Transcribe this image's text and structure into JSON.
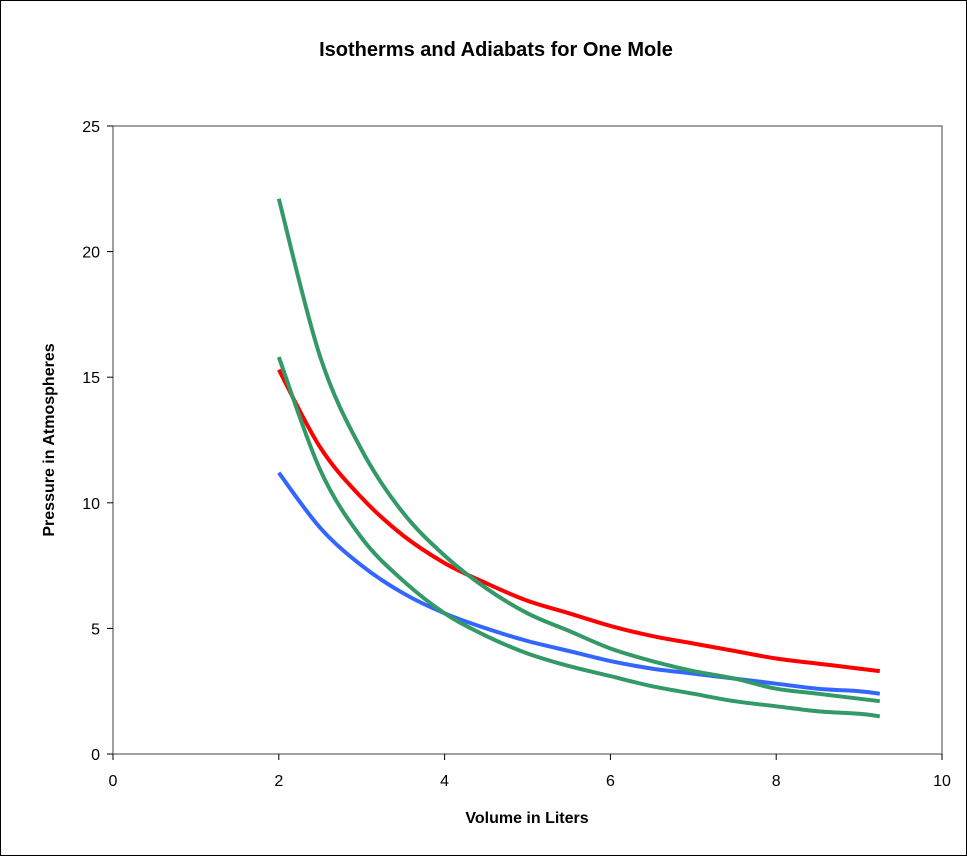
{
  "chart_data": {
    "type": "line",
    "title": "Isotherms and Adiabats for One Mole",
    "xlabel": "Volume in Liters",
    "ylabel": "Pressure in Atmospheres",
    "xlim": [
      0,
      10
    ],
    "ylim": [
      0,
      25
    ],
    "xticks": [
      "0",
      "2",
      "4",
      "6",
      "8",
      "10"
    ],
    "yticks": [
      "0",
      "5",
      "10",
      "15",
      "20",
      "25"
    ],
    "grid": false,
    "legend": "none",
    "series": [
      {
        "color": "#ff0000",
        "x": [
          2,
          2.5,
          3,
          3.5,
          4,
          4.5,
          5,
          5.5,
          6,
          6.5,
          7,
          7.5,
          8,
          8.5,
          9,
          9.25
        ],
        "y": [
          15.3,
          12.2,
          10.2,
          8.7,
          7.6,
          6.8,
          6.1,
          5.6,
          5.1,
          4.7,
          4.4,
          4.1,
          3.8,
          3.6,
          3.4,
          3.3
        ]
      },
      {
        "color": "#3366ff",
        "x": [
          2,
          2.5,
          3,
          3.5,
          4,
          4.5,
          5,
          5.5,
          6,
          6.5,
          7,
          7.5,
          8,
          8.5,
          9,
          9.25
        ],
        "y": [
          11.2,
          9.0,
          7.5,
          6.4,
          5.6,
          5.0,
          4.5,
          4.1,
          3.7,
          3.4,
          3.2,
          3.0,
          2.8,
          2.6,
          2.5,
          2.4
        ]
      },
      {
        "color": "#339966",
        "x": [
          2,
          2.5,
          3,
          3.5,
          4,
          4.5,
          5,
          5.5,
          6,
          6.5,
          7,
          7.5,
          8,
          8.5,
          9,
          9.25
        ],
        "y": [
          22.1,
          15.8,
          12.1,
          9.6,
          7.9,
          6.6,
          5.6,
          4.9,
          4.2,
          3.7,
          3.3,
          3.0,
          2.6,
          2.4,
          2.2,
          2.1
        ]
      },
      {
        "color": "#339966",
        "x": [
          2,
          2.5,
          3,
          3.5,
          4,
          4.5,
          5,
          5.5,
          6,
          6.5,
          7,
          7.5,
          8,
          8.5,
          9,
          9.25
        ],
        "y": [
          15.8,
          11.3,
          8.6,
          6.9,
          5.6,
          4.7,
          4.0,
          3.5,
          3.1,
          2.7,
          2.4,
          2.1,
          1.9,
          1.7,
          1.6,
          1.5
        ]
      }
    ]
  }
}
